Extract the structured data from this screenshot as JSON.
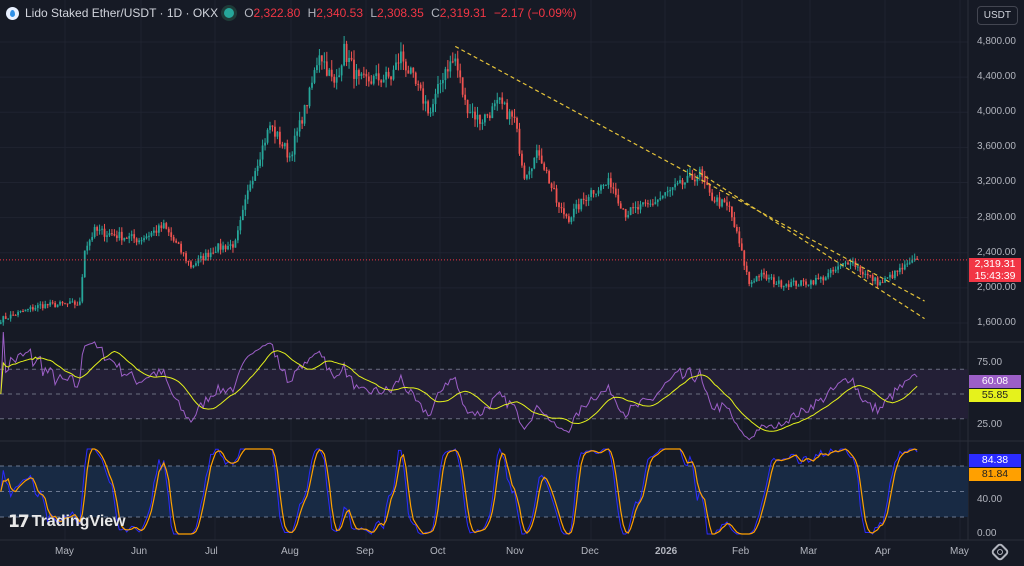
{
  "header": {
    "symbol": "Lido Staked Ether/USDT · 1D · OKX",
    "open_label": "O",
    "open": "2,322.80",
    "high_label": "H",
    "high": "2,340.53",
    "low_label": "L",
    "low": "2,308.35",
    "close_label": "C",
    "close": "2,319.31",
    "change": "−2.17 (−0.09%)"
  },
  "currency_button": "USDT",
  "price_tag": {
    "price": "2,319.31",
    "countdown": "15:43:39",
    "color": "#f23645"
  },
  "rsi_tags": {
    "rsi": "60.08",
    "rsi_color": "#9c5fc7",
    "ma": "55.85",
    "ma_color": "#e5f21c"
  },
  "stoch_tags": {
    "k": "84.38",
    "k_color": "#2b2bff",
    "d": "81.84",
    "d_color": "#ffa000"
  },
  "price_axis": [
    "4,800.00",
    "4,400.00",
    "4,000.00",
    "3,600.00",
    "3,200.00",
    "2,800.00",
    "2,400.00",
    "2,000.00",
    "1,600.00"
  ],
  "rsi_axis": [
    "75.00",
    "25.00"
  ],
  "stoch_axis": [
    "40.00",
    "0.00"
  ],
  "time_axis": [
    "May",
    "Jun",
    "Jul",
    "Aug",
    "Sep",
    "Oct",
    "Nov",
    "Dec",
    "2026",
    "Feb",
    "Mar",
    "Apr",
    "May"
  ],
  "watermark": "TradingView",
  "colors": {
    "up": "#26a69a",
    "down": "#ef5350",
    "trendline": "#e5c33a"
  },
  "chart_data": {
    "type": "candlestick",
    "price_ticks": [
      4800,
      4400,
      4000,
      3600,
      3200,
      2800,
      2400,
      2000,
      1600
    ],
    "close_path": [
      [
        "2025-04-05",
        1640
      ],
      [
        "2025-04-21",
        1800
      ],
      [
        "2025-05-07",
        1820
      ],
      [
        "2025-05-09",
        2450
      ],
      [
        "2025-05-13",
        2650
      ],
      [
        "2025-05-31",
        2550
      ],
      [
        "2025-06-10",
        2700
      ],
      [
        "2025-06-21",
        2250
      ],
      [
        "2025-07-01",
        2450
      ],
      [
        "2025-07-09",
        2500
      ],
      [
        "2025-07-15",
        3200
      ],
      [
        "2025-07-23",
        3850
      ],
      [
        "2025-07-31",
        3500
      ],
      [
        "2025-08-08",
        4200
      ],
      [
        "2025-08-12",
        4700
      ],
      [
        "2025-08-18",
        4300
      ],
      [
        "2025-08-22",
        4700
      ],
      [
        "2025-08-28",
        4350
      ],
      [
        "2025-09-10",
        4400
      ],
      [
        "2025-09-14",
        4650
      ],
      [
        "2025-09-20",
        4300
      ],
      [
        "2025-09-26",
        4000
      ],
      [
        "2025-10-02",
        4500
      ],
      [
        "2025-10-06",
        4600
      ],
      [
        "2025-10-10",
        4100
      ],
      [
        "2025-10-16",
        3900
      ],
      [
        "2025-10-24",
        4100
      ],
      [
        "2025-10-30",
        3900
      ],
      [
        "2025-11-03",
        3300
      ],
      [
        "2025-11-09",
        3550
      ],
      [
        "2025-11-17",
        2900
      ],
      [
        "2025-11-21",
        2800
      ],
      [
        "2025-11-30",
        3100
      ],
      [
        "2025-12-08",
        3200
      ],
      [
        "2025-12-14",
        2850
      ],
      [
        "2025-12-24",
        2950
      ],
      [
        "2026-01-01",
        3100
      ],
      [
        "2026-01-07",
        3200
      ],
      [
        "2026-01-13",
        3300
      ],
      [
        "2026-01-17",
        3050
      ],
      [
        "2026-01-25",
        2900
      ],
      [
        "2026-01-29",
        2500
      ],
      [
        "2026-02-02",
        2050
      ],
      [
        "2026-02-06",
        2150
      ],
      [
        "2026-02-14",
        2050
      ],
      [
        "2026-02-23",
        2050
      ],
      [
        "2026-03-03",
        2100
      ],
      [
        "2026-03-09",
        2200
      ],
      [
        "2026-03-15",
        2320
      ],
      [
        "2026-03-21",
        2150
      ],
      [
        "2026-03-27",
        2050
      ],
      [
        "2026-04-04",
        2200
      ],
      [
        "2026-04-11",
        2319.31
      ]
    ],
    "trendlines": [
      [
        [
          "2025-10-06",
          4750
        ],
        [
          "2026-04-14",
          1850
        ]
      ],
      [
        [
          "2026-01-08",
          3400
        ],
        [
          "2026-04-14",
          1650
        ]
      ]
    ],
    "last_price": 2319.31,
    "rsi_levels": [
      70,
      50,
      30
    ],
    "stoch_levels": [
      80,
      50,
      20
    ]
  }
}
